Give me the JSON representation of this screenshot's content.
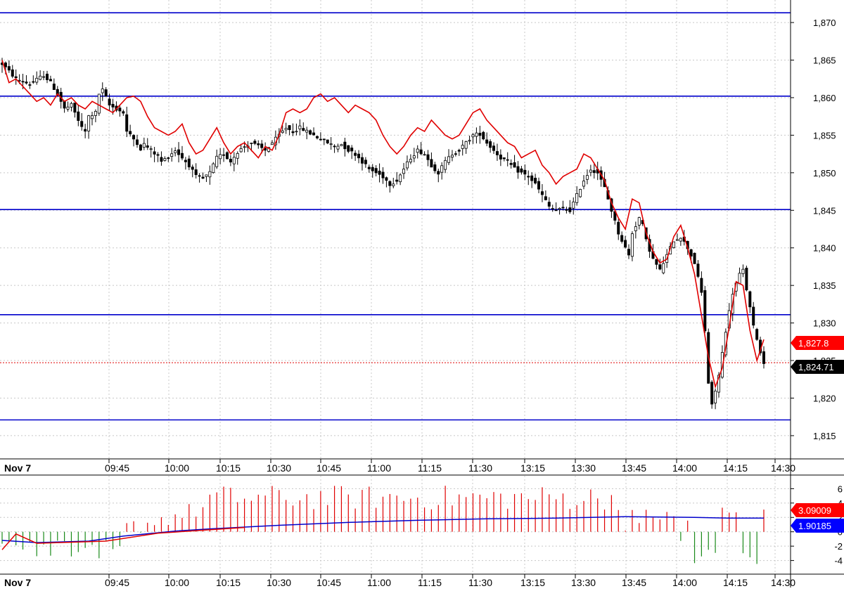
{
  "colors": {
    "background": "#ffffff",
    "grid": "#c8c8c8",
    "level_line": "#0000cc",
    "candle_up": "#ffffff",
    "candle_down": "#000000",
    "wick": "#000000",
    "overlay_line": "#e00000",
    "last_price_line": "#e00000",
    "hist_pos": "#e00000",
    "hist_neg": "#1a8a1a",
    "signal_line": "#0000cc",
    "signal_tail": "#e00000",
    "tag_red": "#ff0000",
    "tag_black": "#000000",
    "tag_blue": "#0000ff"
  },
  "chart_data": [
    {
      "type": "candlestick",
      "date_label": "Nov 7",
      "x_labels": [
        "09:45",
        "10:00",
        "10:15",
        "10:30",
        "10:45",
        "11:00",
        "11:15",
        "11:30",
        "13:15",
        "13:30",
        "13:45",
        "14:00",
        "14:15",
        "14:30"
      ],
      "y_ticks": [
        "1,870",
        "1,865",
        "1,860",
        "1,855",
        "1,850",
        "1,845",
        "1,840",
        "1,835",
        "1,830",
        "1,825",
        "1,820",
        "1,815"
      ],
      "y_tick_values": [
        1870,
        1865,
        1860,
        1855,
        1850,
        1845,
        1840,
        1835,
        1830,
        1825,
        1820,
        1815
      ],
      "y_range": [
        1812,
        1873
      ],
      "horizontal_levels": [
        1871.3,
        1860.2,
        1845.1,
        1831.1,
        1817.1
      ],
      "last_price": 1824.71,
      "last_price_label": "1,824.71",
      "overlay_last": 1827.8,
      "overlay_last_label": "1,827.8",
      "close_path": [
        [
          0,
          1864.5
        ],
        [
          4,
          1862.5
        ],
        [
          8,
          1861.8
        ],
        [
          12,
          1863
        ],
        [
          14,
          1862
        ],
        [
          16,
          1860.5
        ],
        [
          18,
          1858.5
        ],
        [
          20,
          1859
        ],
        [
          23,
          1856
        ],
        [
          24,
          1855.5
        ],
        [
          25,
          1857.5
        ],
        [
          27,
          1858
        ],
        [
          28,
          1860.5
        ],
        [
          29,
          1861
        ],
        [
          30,
          1860
        ],
        [
          31,
          1859
        ],
        [
          33,
          1858.5
        ],
        [
          35,
          1858
        ],
        [
          36,
          1855.5
        ],
        [
          37,
          1855
        ],
        [
          39,
          1854
        ],
        [
          40,
          1853.2
        ],
        [
          41,
          1853.8
        ],
        [
          43,
          1853
        ],
        [
          45,
          1852.2
        ],
        [
          46,
          1851.5
        ],
        [
          47,
          1851.8
        ],
        [
          50,
          1853
        ],
        [
          52,
          1852
        ],
        [
          54,
          1851
        ],
        [
          56,
          1849.5
        ],
        [
          58,
          1849.2
        ],
        [
          60,
          1850
        ],
        [
          62,
          1852
        ],
        [
          64,
          1852.5
        ],
        [
          66,
          1851.5
        ],
        [
          68,
          1852.8
        ],
        [
          70,
          1853.5
        ],
        [
          72,
          1854
        ],
        [
          74,
          1853.5
        ],
        [
          76,
          1853
        ],
        [
          78,
          1854
        ],
        [
          80,
          1855
        ],
        [
          82,
          1856
        ],
        [
          84,
          1855.5
        ],
        [
          86,
          1856
        ],
        [
          88,
          1855.5
        ],
        [
          90,
          1855
        ],
        [
          92,
          1854.5
        ],
        [
          94,
          1854
        ],
        [
          96,
          1853.5
        ],
        [
          98,
          1853.8
        ],
        [
          100,
          1853
        ],
        [
          102,
          1852.5
        ],
        [
          104,
          1851.5
        ],
        [
          106,
          1850.5
        ],
        [
          108,
          1850
        ],
        [
          110,
          1849.5
        ],
        [
          112,
          1848.5
        ],
        [
          114,
          1849
        ],
        [
          116,
          1850.5
        ],
        [
          118,
          1852
        ],
        [
          120,
          1853
        ],
        [
          122,
          1852.5
        ],
        [
          124,
          1851
        ],
        [
          126,
          1850
        ],
        [
          128,
          1851.5
        ],
        [
          130,
          1852.5
        ],
        [
          132,
          1853
        ],
        [
          134,
          1854
        ],
        [
          136,
          1855
        ],
        [
          138,
          1855.2
        ],
        [
          140,
          1854
        ],
        [
          142,
          1853
        ],
        [
          144,
          1852
        ],
        [
          146,
          1851.5
        ],
        [
          148,
          1850.5
        ],
        [
          150,
          1850
        ],
        [
          152,
          1849.5
        ],
        [
          154,
          1848.5
        ],
        [
          156,
          1847
        ],
        [
          158,
          1845.5
        ],
        [
          160,
          1845
        ],
        [
          162,
          1845.2
        ],
        [
          164,
          1845
        ],
        [
          166,
          1847
        ],
        [
          168,
          1849
        ],
        [
          170,
          1850.5
        ],
        [
          172,
          1850
        ],
        [
          174,
          1848
        ],
        [
          176,
          1845
        ],
        [
          178,
          1842
        ],
        [
          180,
          1840
        ],
        [
          181,
          1839
        ],
        [
          182,
          1842
        ],
        [
          184,
          1844
        ],
        [
          185,
          1843
        ],
        [
          186,
          1841
        ],
        [
          188,
          1838.5
        ],
        [
          190,
          1837
        ],
        [
          192,
          1839
        ],
        [
          194,
          1841
        ],
        [
          196,
          1841.5
        ],
        [
          198,
          1840
        ],
        [
          200,
          1838
        ],
        [
          202,
          1834
        ],
        [
          203,
          1829
        ],
        [
          204,
          1822
        ],
        [
          205,
          1819
        ],
        [
          207,
          1823
        ],
        [
          209,
          1829
        ],
        [
          211,
          1834
        ],
        [
          213,
          1836.5
        ],
        [
          214,
          1837
        ],
        [
          215,
          1834.5
        ],
        [
          216,
          1832
        ],
        [
          217,
          1829.5
        ],
        [
          218,
          1828
        ],
        [
          219,
          1826
        ],
        [
          220,
          1824.7
        ]
      ],
      "overlay_path": [
        [
          0,
          1865
        ],
        [
          2,
          1862
        ],
        [
          4,
          1862.5
        ],
        [
          6,
          1861.5
        ],
        [
          8,
          1860.5
        ],
        [
          10,
          1859.5
        ],
        [
          12,
          1860
        ],
        [
          14,
          1859
        ],
        [
          16,
          1860.5
        ],
        [
          18,
          1859.5
        ],
        [
          20,
          1860
        ],
        [
          22,
          1859
        ],
        [
          24,
          1858.5
        ],
        [
          26,
          1859.5
        ],
        [
          28,
          1859
        ],
        [
          30,
          1858.5
        ],
        [
          32,
          1858
        ],
        [
          34,
          1859
        ],
        [
          36,
          1860
        ],
        [
          38,
          1860.2
        ],
        [
          40,
          1859.5
        ],
        [
          42,
          1857.5
        ],
        [
          44,
          1856
        ],
        [
          46,
          1855.5
        ],
        [
          48,
          1855
        ],
        [
          50,
          1855.5
        ],
        [
          52,
          1856.5
        ],
        [
          54,
          1854
        ],
        [
          56,
          1852.5
        ],
        [
          58,
          1853
        ],
        [
          60,
          1854.5
        ],
        [
          62,
          1856
        ],
        [
          64,
          1854
        ],
        [
          66,
          1852.5
        ],
        [
          68,
          1853.5
        ],
        [
          70,
          1854
        ],
        [
          72,
          1853
        ],
        [
          74,
          1852
        ],
        [
          76,
          1853.5
        ],
        [
          78,
          1853
        ],
        [
          80,
          1855
        ],
        [
          82,
          1858
        ],
        [
          84,
          1858.5
        ],
        [
          86,
          1858
        ],
        [
          88,
          1858.5
        ],
        [
          90,
          1860
        ],
        [
          92,
          1860.5
        ],
        [
          94,
          1859.5
        ],
        [
          96,
          1860
        ],
        [
          98,
          1859
        ],
        [
          100,
          1858
        ],
        [
          102,
          1859
        ],
        [
          104,
          1858.5
        ],
        [
          106,
          1858
        ],
        [
          108,
          1857
        ],
        [
          110,
          1855
        ],
        [
          112,
          1853.5
        ],
        [
          114,
          1852.5
        ],
        [
          116,
          1853.5
        ],
        [
          118,
          1855
        ],
        [
          120,
          1856
        ],
        [
          122,
          1855.5
        ],
        [
          124,
          1857
        ],
        [
          126,
          1856
        ],
        [
          128,
          1855
        ],
        [
          130,
          1854.5
        ],
        [
          132,
          1855
        ],
        [
          134,
          1856.5
        ],
        [
          136,
          1858
        ],
        [
          138,
          1858.5
        ],
        [
          140,
          1857
        ],
        [
          142,
          1856
        ],
        [
          144,
          1855
        ],
        [
          146,
          1854
        ],
        [
          148,
          1853.5
        ],
        [
          150,
          1852
        ],
        [
          152,
          1852.5
        ],
        [
          154,
          1853
        ],
        [
          156,
          1851
        ],
        [
          158,
          1850
        ],
        [
          160,
          1848.5
        ],
        [
          162,
          1849.5
        ],
        [
          164,
          1850
        ],
        [
          166,
          1850.5
        ],
        [
          168,
          1852.5
        ],
        [
          170,
          1852
        ],
        [
          172,
          1850.5
        ],
        [
          174,
          1849
        ],
        [
          176,
          1846
        ],
        [
          178,
          1844
        ],
        [
          180,
          1842.5
        ],
        [
          182,
          1846.5
        ],
        [
          184,
          1846
        ],
        [
          186,
          1842
        ],
        [
          188,
          1839.5
        ],
        [
          190,
          1838
        ],
        [
          192,
          1838.5
        ],
        [
          194,
          1841.5
        ],
        [
          196,
          1843
        ],
        [
          198,
          1840
        ],
        [
          200,
          1836.5
        ],
        [
          202,
          1831
        ],
        [
          204,
          1825.5
        ],
        [
          206,
          1821.5
        ],
        [
          208,
          1824
        ],
        [
          210,
          1829.5
        ],
        [
          212,
          1835.5
        ],
        [
          214,
          1835
        ],
        [
          216,
          1829
        ],
        [
          218,
          1825
        ],
        [
          220,
          1827.8
        ]
      ]
    },
    {
      "type": "bar",
      "y_ticks": [
        "6",
        "4",
        "2",
        "0",
        "-2",
        "-4"
      ],
      "y_tick_values": [
        6,
        4,
        2,
        0,
        -2,
        -4
      ],
      "y_range": [
        -5.8,
        7.8
      ],
      "signal_last": 1.90185,
      "signal_last_label": "1.90185",
      "hist_last": 3.09009,
      "hist_last_label": "3.09009",
      "signal_path": [
        [
          0,
          -1.2
        ],
        [
          10,
          -1.5
        ],
        [
          25,
          -1.3
        ],
        [
          35,
          -0.6
        ],
        [
          50,
          0.1
        ],
        [
          60,
          0.4
        ],
        [
          80,
          0.9
        ],
        [
          100,
          1.3
        ],
        [
          120,
          1.6
        ],
        [
          140,
          1.8
        ],
        [
          160,
          1.9
        ],
        [
          180,
          2.1
        ],
        [
          200,
          2.0
        ],
        [
          210,
          1.9
        ],
        [
          220,
          1.9
        ]
      ],
      "signal_tail_path": [
        [
          210,
          2.3
        ],
        [
          215,
          1.0
        ],
        [
          220,
          3.1
        ]
      ]
    }
  ]
}
